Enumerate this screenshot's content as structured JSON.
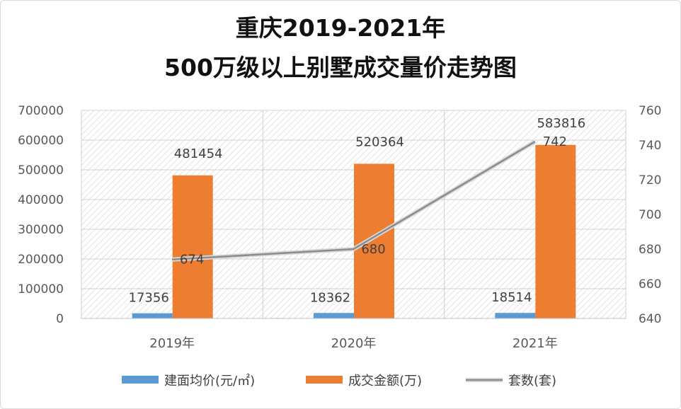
{
  "title_line1": "重庆2019-2021年",
  "title_line2": "500万级以上别墅成交量价走势图",
  "chart_data": {
    "type": "bar",
    "title": "重庆2019-2021年 500万级以上别墅成交量价走势图",
    "categories": [
      "2019年",
      "2020年",
      "2021年"
    ],
    "series": [
      {
        "name": "建面均价(元/㎡)",
        "type": "bar",
        "axis": "left",
        "values": [
          17356,
          18362,
          18514
        ],
        "color": "#5B9BD5"
      },
      {
        "name": "成交金额(万)",
        "type": "bar",
        "axis": "left",
        "values": [
          481454,
          520364,
          583816
        ],
        "color": "#ED7D31"
      },
      {
        "name": "套数(套)",
        "type": "line",
        "axis": "right",
        "values": [
          674,
          680,
          742
        ],
        "color": "#8c8c8c"
      }
    ],
    "ylim_left": [
      0,
      700000
    ],
    "yticks_left": [
      "0",
      "100000",
      "200000",
      "300000",
      "400000",
      "500000",
      "600000",
      "700000"
    ],
    "ylim_right": [
      640,
      760
    ],
    "yticks_right": [
      "640",
      "660",
      "680",
      "700",
      "720",
      "740",
      "760"
    ],
    "grid": true,
    "legend_position": "bottom"
  }
}
